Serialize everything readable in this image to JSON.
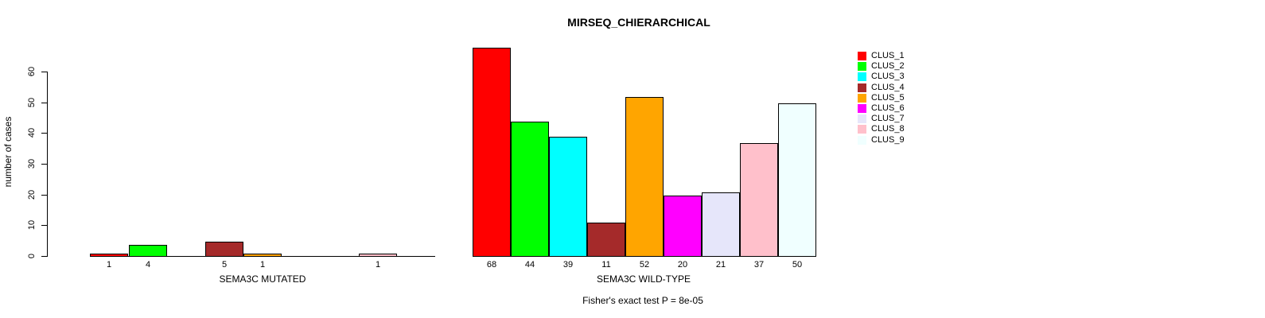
{
  "chart_data": {
    "type": "bar",
    "title": "MIRSEQ_CHIERARCHICAL",
    "ylabel": "number of cases",
    "ylim": [
      0,
      60
    ],
    "yticks": [
      0,
      10,
      20,
      30,
      40,
      50,
      60
    ],
    "grid": false,
    "legend_position": "right",
    "categories": [
      "CLUS_1",
      "CLUS_2",
      "CLUS_3",
      "CLUS_4",
      "CLUS_5",
      "CLUS_6",
      "CLUS_7",
      "CLUS_8",
      "CLUS_9"
    ],
    "colors": [
      "#FF0000",
      "#00FF00",
      "#00FFFF",
      "#A52A2A",
      "#FFA500",
      "#FF00FF",
      "#E6E6FA",
      "#FFC0CB",
      "#F0FFFF"
    ],
    "panels": [
      {
        "xlabel": "SEMA3C MUTATED",
        "values": [
          1,
          4,
          0,
          5,
          1,
          0,
          0,
          1,
          0
        ]
      },
      {
        "xlabel": "SEMA3C WILD-TYPE",
        "values": [
          68,
          44,
          39,
          11,
          52,
          20,
          21,
          37,
          50
        ]
      }
    ],
    "annotation": "Fisher's exact test P = 8e-05"
  }
}
